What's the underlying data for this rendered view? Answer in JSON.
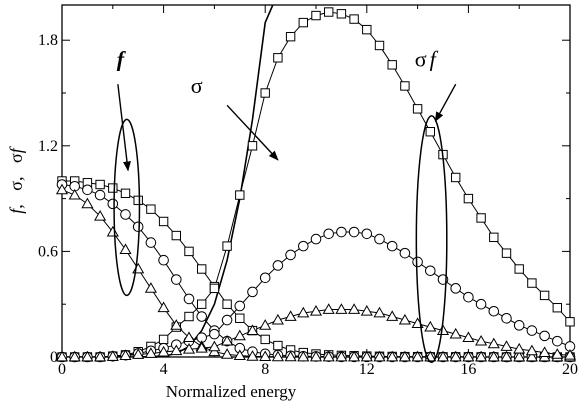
{
  "chart_data": {
    "type": "line",
    "xlabel": "Normalized energy",
    "ylabel_parts": [
      "f",
      ",",
      "σ",
      ",",
      "σ",
      "f"
    ],
    "xlim": [
      0,
      20
    ],
    "ylim": [
      0,
      2.0
    ],
    "xticks": [
      0,
      2,
      4,
      6,
      8,
      10,
      12,
      14,
      16,
      18,
      20
    ],
    "xtick_labels": [
      "0",
      "4",
      "8",
      "12",
      "16",
      "20"
    ],
    "xtick_label_values": [
      0,
      4,
      8,
      12,
      16,
      20
    ],
    "yticks": [
      0,
      0.3,
      0.6,
      0.9,
      1.2,
      1.5,
      1.8
    ],
    "ytick_labels": [
      "0",
      "0.6",
      "1.2",
      "1.8"
    ],
    "ytick_label_values": [
      0,
      0.6,
      1.2,
      1.8
    ],
    "grid": false,
    "annotations": [
      {
        "text": "f",
        "style": "bold-italic",
        "x": 2.3,
        "y": 1.65
      },
      {
        "text": "σ",
        "style": "normal",
        "x": 5.3,
        "y": 1.5
      },
      {
        "text": "σf",
        "style": "italic",
        "x": 14.3,
        "y": 1.65
      }
    ],
    "sigma_curve": {
      "name": "σ",
      "x": [
        0,
        1,
        2,
        3,
        4,
        4.5,
        5,
        5.5,
        6,
        6.5,
        7,
        7.5,
        8,
        8.3
      ],
      "y": [
        0,
        0,
        0,
        0,
        0.005,
        0.02,
        0.06,
        0.15,
        0.3,
        0.55,
        0.9,
        1.35,
        1.9,
        2.2
      ]
    },
    "series": [
      {
        "marker": "square",
        "x": [
          0,
          0.5,
          1,
          1.5,
          2,
          2.5,
          3,
          3.5,
          4,
          4.5,
          5,
          5.5,
          6,
          6.5,
          7,
          7.5,
          8,
          8.5,
          9,
          9.5,
          10,
          10.5,
          11,
          11.5,
          12,
          12.5,
          13,
          13.5,
          14,
          14.5,
          15,
          15.5,
          16,
          16.5,
          17,
          17.5,
          18,
          18.5,
          19,
          19.5,
          20
        ],
        "f": [
          1.0,
          1.0,
          0.99,
          0.98,
          0.96,
          0.93,
          0.89,
          0.84,
          0.77,
          0.69,
          0.6,
          0.5,
          0.4,
          0.3,
          0.22,
          0.15,
          0.1,
          0.065,
          0.04,
          0.025,
          0.017,
          0.012,
          0.009,
          0.007,
          0.005,
          0.004,
          0.003,
          0.002,
          0.002,
          0.001,
          0.001,
          0.001,
          0.001,
          0.0005,
          0.0005,
          0.0,
          0.0,
          0.0,
          0.0,
          0.0,
          0.0
        ],
        "sigma_f": [
          0,
          0,
          0,
          0,
          0.005,
          0.012,
          0.03,
          0.06,
          0.1,
          0.17,
          0.23,
          0.3,
          0.39,
          0.63,
          0.92,
          1.2,
          1.5,
          1.7,
          1.82,
          1.9,
          1.94,
          1.96,
          1.95,
          1.92,
          1.86,
          1.77,
          1.66,
          1.54,
          1.41,
          1.28,
          1.15,
          1.02,
          0.9,
          0.79,
          0.68,
          0.59,
          0.5,
          0.42,
          0.35,
          0.28,
          0.2
        ]
      },
      {
        "marker": "circle",
        "x": [
          0,
          0.5,
          1,
          1.5,
          2,
          2.5,
          3,
          3.5,
          4,
          4.5,
          5,
          5.5,
          6,
          6.5,
          7,
          7.5,
          8,
          8.5,
          9,
          9.5,
          10,
          10.5,
          11,
          11.5,
          12,
          12.5,
          13,
          13.5,
          14,
          14.5,
          15,
          15.5,
          16,
          16.5,
          17,
          17.5,
          18,
          18.5,
          19,
          19.5,
          20
        ],
        "f": [
          0.98,
          0.97,
          0.95,
          0.92,
          0.87,
          0.81,
          0.74,
          0.65,
          0.55,
          0.44,
          0.33,
          0.23,
          0.15,
          0.09,
          0.05,
          0.03,
          0.018,
          0.011,
          0.007,
          0.004,
          0.003,
          0.002,
          0.001,
          0.001,
          0.001,
          0.0005,
          0.0005,
          0.0,
          0.0,
          0.0,
          0.0,
          0.0,
          0.0,
          0.0,
          0.0,
          0.0,
          0.0,
          0.0,
          0.0,
          0.0,
          0.0
        ],
        "sigma_f": [
          0,
          0,
          0,
          0,
          0.004,
          0.01,
          0.02,
          0.035,
          0.05,
          0.07,
          0.09,
          0.11,
          0.13,
          0.21,
          0.29,
          0.37,
          0.45,
          0.52,
          0.58,
          0.63,
          0.67,
          0.7,
          0.71,
          0.71,
          0.7,
          0.67,
          0.63,
          0.59,
          0.54,
          0.49,
          0.44,
          0.39,
          0.34,
          0.3,
          0.26,
          0.22,
          0.18,
          0.15,
          0.12,
          0.09,
          0.06
        ]
      },
      {
        "marker": "triangle",
        "x": [
          0,
          0.5,
          1,
          1.5,
          2,
          2.5,
          3,
          3.5,
          4,
          4.5,
          5,
          5.5,
          6,
          6.5,
          7,
          7.5,
          8,
          8.5,
          9,
          9.5,
          10,
          10.5,
          11,
          11.5,
          12,
          12.5,
          13,
          13.5,
          14,
          14.5,
          15,
          15.5,
          16,
          16.5,
          17,
          17.5,
          18,
          18.5,
          19,
          19.5,
          20
        ],
        "f": [
          0.95,
          0.92,
          0.87,
          0.8,
          0.71,
          0.61,
          0.5,
          0.39,
          0.28,
          0.18,
          0.11,
          0.06,
          0.03,
          0.015,
          0.008,
          0.004,
          0.002,
          0.001,
          0.001,
          0.0,
          0.0,
          0.0,
          0.0,
          0.0,
          0.0,
          0.0,
          0.0,
          0.0,
          0.0,
          0.0,
          0.0,
          0.0,
          0.0,
          0.0,
          0.0,
          0.0,
          0.0,
          0.0,
          0.0,
          0.0,
          0.0
        ],
        "sigma_f": [
          0,
          0,
          0,
          0,
          0.003,
          0.008,
          0.014,
          0.02,
          0.028,
          0.036,
          0.044,
          0.05,
          0.058,
          0.09,
          0.12,
          0.15,
          0.18,
          0.21,
          0.23,
          0.25,
          0.26,
          0.27,
          0.27,
          0.27,
          0.26,
          0.25,
          0.23,
          0.21,
          0.19,
          0.17,
          0.15,
          0.13,
          0.11,
          0.09,
          0.075,
          0.06,
          0.045,
          0.035,
          0.025,
          0.015,
          0.01
        ]
      }
    ],
    "ellipses": [
      {
        "label": "f",
        "cx": 2.55,
        "cy": 0.85,
        "rx": 0.5,
        "ry": 0.5
      },
      {
        "label": "σf",
        "cx": 14.55,
        "cy": 0.67,
        "rx": 0.6,
        "ry": 0.7
      }
    ],
    "arrows": [
      {
        "from": [
          2.2,
          1.55
        ],
        "to": [
          2.6,
          1.06
        ]
      },
      {
        "from": [
          6.5,
          1.43
        ],
        "to": [
          8.5,
          1.12
        ]
      },
      {
        "from": [
          15.5,
          1.55
        ],
        "to": [
          14.7,
          1.34
        ]
      }
    ]
  }
}
